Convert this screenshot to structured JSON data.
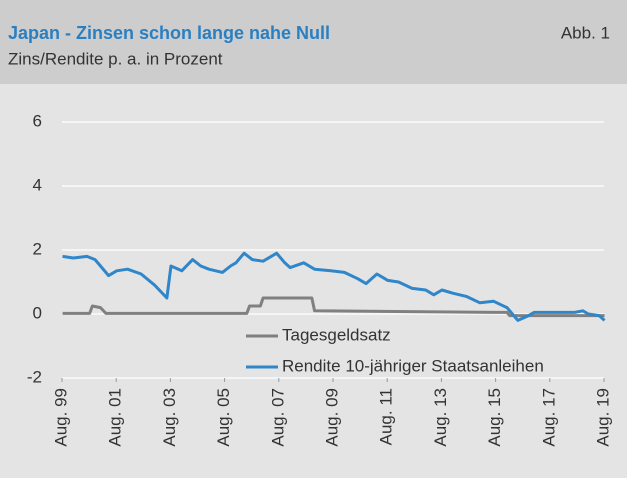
{
  "chart_data": {
    "type": "line",
    "title": "Japan - Zinsen schon lange nahe Null",
    "subtitle": "Zins/Rendite p. a. in Prozent",
    "figure_label": "Abb. 1",
    "xlim": [
      1999.58,
      2019.58
    ],
    "xticks": [
      {
        "value": 1999.58,
        "label": "Aug. 99"
      },
      {
        "value": 2001.58,
        "label": "Aug. 01"
      },
      {
        "value": 2003.58,
        "label": "Aug. 03"
      },
      {
        "value": 2005.58,
        "label": "Aug. 05"
      },
      {
        "value": 2007.58,
        "label": "Aug. 07"
      },
      {
        "value": 2009.58,
        "label": "Aug. 09"
      },
      {
        "value": 2011.58,
        "label": "Aug. 11"
      },
      {
        "value": 2013.58,
        "label": "Aug. 13"
      },
      {
        "value": 2015.58,
        "label": "Aug. 15"
      },
      {
        "value": 2017.58,
        "label": "Aug. 17"
      },
      {
        "value": 2019.58,
        "label": "Aug. 19"
      }
    ],
    "ylim": [
      -2,
      6
    ],
    "yticks": [
      -2,
      0,
      2,
      4,
      6
    ],
    "grid": true,
    "legend": "lower center",
    "series": [
      {
        "name": "Tagesgeldsatz",
        "color": "#808080",
        "x": [
          1999.6,
          2000.6,
          2000.7,
          2001.0,
          2001.2,
          2006.4,
          2006.5,
          2006.9,
          2007.0,
          2008.8,
          2008.9,
          2015.5,
          2016.0,
          2016.1,
          2019.6
        ],
        "values": [
          0.02,
          0.02,
          0.25,
          0.2,
          0.02,
          0.02,
          0.25,
          0.25,
          0.5,
          0.5,
          0.1,
          0.05,
          0.05,
          -0.05,
          -0.05
        ]
      },
      {
        "name": "Rendite 10-jähriger Staatsanleihen",
        "color": "#2f86c9",
        "x": [
          1999.6,
          2000.0,
          2000.5,
          2000.8,
          2001.0,
          2001.3,
          2001.6,
          2002.0,
          2002.5,
          2003.0,
          2003.45,
          2003.6,
          2004.0,
          2004.4,
          2004.7,
          2005.0,
          2005.5,
          2005.8,
          2006.0,
          2006.3,
          2006.6,
          2007.0,
          2007.5,
          2007.8,
          2008.0,
          2008.5,
          2008.9,
          2009.5,
          2010.0,
          2010.5,
          2010.8,
          2011.2,
          2011.6,
          2012.0,
          2012.5,
          2013.0,
          2013.3,
          2013.6,
          2014.0,
          2014.5,
          2015.0,
          2015.5,
          2016.0,
          2016.4,
          2016.8,
          2017.0,
          2017.5,
          2018.0,
          2018.5,
          2018.8,
          2019.0,
          2019.4,
          2019.6
        ],
        "values": [
          1.8,
          1.75,
          1.8,
          1.7,
          1.5,
          1.2,
          1.35,
          1.4,
          1.25,
          0.9,
          0.5,
          1.5,
          1.35,
          1.7,
          1.5,
          1.4,
          1.3,
          1.5,
          1.6,
          1.9,
          1.7,
          1.65,
          1.9,
          1.6,
          1.45,
          1.6,
          1.4,
          1.35,
          1.3,
          1.1,
          0.95,
          1.25,
          1.05,
          1.0,
          0.8,
          0.75,
          0.6,
          0.75,
          0.65,
          0.55,
          0.35,
          0.4,
          0.2,
          -0.2,
          -0.05,
          0.05,
          0.05,
          0.05,
          0.05,
          0.1,
          0.0,
          -0.05,
          -0.2
        ]
      }
    ]
  }
}
